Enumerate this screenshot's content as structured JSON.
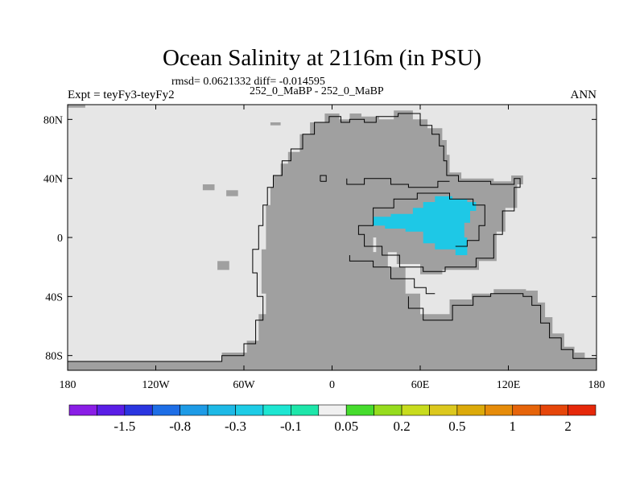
{
  "chart_data": {
    "type": "heatmap",
    "title": "Ocean Salinity at 2116m (in PSU)",
    "rmsd_text": "rmsd= 0.0621332 diff= -0.014595",
    "experiment_text": "252_0_MaBP - 252_0_MaBP",
    "left_header": "Expt = teyFy3-teyFy2",
    "right_header": "ANN",
    "x_range": [
      -180,
      180
    ],
    "y_range": [
      -90,
      90
    ],
    "x_ticks": [
      {
        "value": -180,
        "label": "180"
      },
      {
        "value": -120,
        "label": "120W"
      },
      {
        "value": -60,
        "label": "60W"
      },
      {
        "value": 0,
        "label": "0"
      },
      {
        "value": 60,
        "label": "60E"
      },
      {
        "value": 120,
        "label": "120E"
      },
      {
        "value": 180,
        "label": "180"
      }
    ],
    "y_ticks": [
      {
        "value": 80,
        "label": "80N"
      },
      {
        "value": 40,
        "label": "40N"
      },
      {
        "value": 0,
        "label": "0"
      },
      {
        "value": -40,
        "label": "40S"
      },
      {
        "value": -80,
        "label": "80S"
      }
    ],
    "colorbar": {
      "colors": [
        "#8a1ee6",
        "#5a1ee6",
        "#2a35e0",
        "#1e6ee6",
        "#1e9be6",
        "#1eb9e6",
        "#1ecce6",
        "#1ee6d2",
        "#1ee6aa",
        "#f0f0f0",
        "#46dc2d",
        "#96dc1e",
        "#c8dc1e",
        "#dcc81e",
        "#dcaa0a",
        "#e68c0a",
        "#e6640a",
        "#e6460a",
        "#e6280a"
      ],
      "labels": [
        {
          "text": "-1.5",
          "boundary": 2
        },
        {
          "text": "-0.8",
          "boundary": 4
        },
        {
          "text": "-0.3",
          "boundary": 6
        },
        {
          "text": "-0.1",
          "boundary": 8
        },
        {
          "text": "0.05",
          "boundary": 10
        },
        {
          "text": "0.2",
          "boundary": 12
        },
        {
          "text": "0.5",
          "boundary": 14
        },
        {
          "text": "1",
          "boundary": 16
        },
        {
          "text": "2",
          "boundary": 18
        }
      ]
    },
    "ocean_color": "#e6e6e6",
    "land_color": "#a0a0a0",
    "anomaly_color": "#1ec8e6",
    "land_masses": [
      [
        [
          -180,
          -90
        ],
        [
          -180,
          -84
        ],
        [
          -75,
          -84
        ],
        [
          -75,
          -78
        ],
        [
          -58,
          -78
        ],
        [
          -58,
          -70
        ],
        [
          -50,
          -70
        ],
        [
          -50,
          -52
        ],
        [
          -45,
          -52
        ],
        [
          -45,
          -38
        ],
        [
          -48,
          -38
        ],
        [
          -48,
          -24
        ],
        [
          -48,
          -8
        ],
        [
          -45,
          -8
        ],
        [
          -45,
          8
        ],
        [
          -45,
          22
        ],
        [
          -42,
          22
        ],
        [
          -42,
          34
        ],
        [
          -40,
          34
        ],
        [
          -40,
          42
        ],
        [
          -35,
          42
        ],
        [
          -35,
          50
        ],
        [
          -30,
          50
        ],
        [
          -30,
          58
        ],
        [
          -22,
          58
        ],
        [
          -22,
          70
        ],
        [
          -15,
          70
        ],
        [
          -15,
          78
        ],
        [
          -5,
          78
        ],
        [
          -5,
          84
        ],
        [
          5,
          84
        ],
        [
          5,
          80
        ],
        [
          12,
          80
        ],
        [
          12,
          84
        ],
        [
          20,
          84
        ],
        [
          20,
          82
        ],
        [
          32,
          82
        ],
        [
          32,
          80
        ],
        [
          42,
          80
        ],
        [
          42,
          86
        ],
        [
          55,
          86
        ],
        [
          55,
          80
        ],
        [
          65,
          80
        ],
        [
          65,
          74
        ],
        [
          75,
          74
        ],
        [
          75,
          66
        ],
        [
          78,
          66
        ],
        [
          78,
          56
        ],
        [
          80,
          56
        ],
        [
          80,
          44
        ],
        [
          88,
          44
        ],
        [
          88,
          40
        ],
        [
          110,
          40
        ],
        [
          110,
          38
        ],
        [
          122,
          38
        ],
        [
          122,
          42
        ],
        [
          130,
          42
        ],
        [
          130,
          36
        ],
        [
          126,
          36
        ],
        [
          126,
          20
        ],
        [
          118,
          20
        ],
        [
          118,
          4
        ],
        [
          112,
          4
        ],
        [
          112,
          -16
        ],
        [
          100,
          -16
        ],
        [
          100,
          -22
        ],
        [
          75,
          -22
        ],
        [
          75,
          -25
        ],
        [
          60,
          -25
        ],
        [
          60,
          -18
        ],
        [
          44,
          -18
        ],
        [
          44,
          -10
        ],
        [
          30,
          -10
        ],
        [
          30,
          0
        ],
        [
          28,
          0
        ],
        [
          28,
          -10
        ],
        [
          38,
          -10
        ],
        [
          38,
          -20
        ],
        [
          50,
          -20
        ],
        [
          50,
          -38
        ],
        [
          60,
          -38
        ],
        [
          60,
          -52
        ],
        [
          80,
          -52
        ],
        [
          80,
          -42
        ],
        [
          95,
          -42
        ],
        [
          95,
          -38
        ],
        [
          110,
          -38
        ],
        [
          110,
          -35
        ],
        [
          132,
          -35
        ],
        [
          132,
          -36
        ],
        [
          140,
          -36
        ],
        [
          140,
          -44
        ],
        [
          145,
          -44
        ],
        [
          145,
          -54
        ],
        [
          150,
          -54
        ],
        [
          150,
          -65
        ],
        [
          158,
          -65
        ],
        [
          158,
          -74
        ],
        [
          165,
          -74
        ],
        [
          165,
          -78
        ],
        [
          172,
          -78
        ],
        [
          172,
          -82
        ],
        [
          180,
          -82
        ],
        [
          180,
          -90
        ]
      ],
      [
        [
          -88,
          32
        ],
        [
          -80,
          32
        ],
        [
          -80,
          36
        ],
        [
          -88,
          36
        ]
      ],
      [
        [
          -72,
          28
        ],
        [
          -64,
          28
        ],
        [
          -64,
          32
        ],
        [
          -72,
          32
        ]
      ],
      [
        [
          -78,
          -22
        ],
        [
          -70,
          -22
        ],
        [
          -70,
          -16
        ],
        [
          -78,
          -16
        ]
      ],
      [
        [
          -42,
          76
        ],
        [
          -35,
          76
        ],
        [
          -35,
          78
        ],
        [
          -42,
          78
        ]
      ],
      [
        [
          24,
          -10
        ],
        [
          34,
          -10
        ],
        [
          34,
          -16
        ],
        [
          24,
          -16
        ]
      ],
      [
        [
          -180,
          88
        ],
        [
          -168,
          88
        ],
        [
          -168,
          90
        ],
        [
          -180,
          90
        ]
      ]
    ],
    "coastlines": [
      [
        [
          -180,
          -84
        ],
        [
          -75,
          -84
        ],
        [
          -75,
          -80
        ],
        [
          -60,
          -80
        ],
        [
          -60,
          -72
        ],
        [
          -52,
          -72
        ],
        [
          -52,
          -56
        ],
        [
          -47,
          -56
        ],
        [
          -47,
          -40
        ],
        [
          -51,
          -40
        ],
        [
          -51,
          -24
        ],
        [
          -54,
          -24
        ],
        [
          -54,
          -8
        ],
        [
          -50,
          -8
        ],
        [
          -50,
          8
        ],
        [
          -47,
          8
        ],
        [
          -47,
          22
        ],
        [
          -44,
          22
        ],
        [
          -44,
          34
        ],
        [
          -40,
          34
        ],
        [
          -40,
          42
        ],
        [
          -34,
          42
        ],
        [
          -34,
          52
        ],
        [
          -28,
          52
        ],
        [
          -28,
          60
        ],
        [
          -20,
          60
        ],
        [
          -20,
          70
        ],
        [
          -12,
          70
        ],
        [
          -12,
          78
        ],
        [
          -2,
          78
        ],
        [
          -2,
          82
        ],
        [
          6,
          82
        ],
        [
          6,
          78
        ],
        [
          12,
          78
        ],
        [
          12,
          80
        ],
        [
          22,
          80
        ],
        [
          22,
          78
        ],
        [
          30,
          78
        ],
        [
          30,
          82
        ],
        [
          45,
          82
        ],
        [
          45,
          84
        ],
        [
          60,
          84
        ],
        [
          60,
          76
        ],
        [
          68,
          76
        ],
        [
          68,
          70
        ],
        [
          73,
          70
        ],
        [
          73,
          62
        ],
        [
          76,
          62
        ],
        [
          76,
          52
        ],
        [
          78,
          52
        ],
        [
          78,
          42
        ],
        [
          86,
          42
        ],
        [
          86,
          38
        ],
        [
          108,
          38
        ],
        [
          108,
          36
        ],
        [
          124,
          36
        ],
        [
          124,
          40
        ],
        [
          128,
          40
        ],
        [
          128,
          34
        ],
        [
          124,
          34
        ],
        [
          124,
          18
        ],
        [
          116,
          18
        ],
        [
          116,
          2
        ],
        [
          110,
          2
        ],
        [
          110,
          -14
        ],
        [
          98,
          -14
        ],
        [
          98,
          -20
        ],
        [
          77,
          -20
        ],
        [
          77,
          -23
        ],
        [
          62,
          -23
        ],
        [
          62,
          -20
        ],
        [
          46,
          -20
        ],
        [
          46,
          -12
        ],
        [
          34,
          -12
        ],
        [
          34,
          -6
        ],
        [
          22,
          -6
        ],
        [
          22,
          2
        ],
        [
          18,
          2
        ],
        [
          18,
          8
        ],
        [
          28,
          8
        ],
        [
          28,
          20
        ],
        [
          42,
          20
        ],
        [
          42,
          26
        ],
        [
          58,
          26
        ],
        [
          58,
          30
        ],
        [
          80,
          30
        ],
        [
          80,
          26
        ],
        [
          96,
          26
        ],
        [
          96,
          22
        ],
        [
          104,
          22
        ],
        [
          104,
          8
        ],
        [
          100,
          8
        ],
        [
          100,
          -2
        ],
        [
          92,
          -2
        ],
        [
          92,
          -6
        ],
        [
          84,
          -6
        ]
      ],
      [
        [
          -8,
          38
        ],
        [
          -4,
          38
        ],
        [
          -4,
          42
        ],
        [
          -8,
          42
        ],
        [
          -8,
          38
        ]
      ],
      [
        [
          10,
          40
        ],
        [
          10,
          36
        ],
        [
          22,
          36
        ],
        [
          22,
          40
        ],
        [
          40,
          40
        ],
        [
          40,
          36
        ],
        [
          52,
          36
        ],
        [
          52,
          34
        ],
        [
          72,
          34
        ],
        [
          72,
          38
        ],
        [
          80,
          38
        ]
      ],
      [
        [
          12,
          -12
        ],
        [
          12,
          -16
        ],
        [
          28,
          -16
        ],
        [
          28,
          -20
        ],
        [
          40,
          -20
        ],
        [
          40,
          -28
        ],
        [
          56,
          -28
        ],
        [
          56,
          -34
        ],
        [
          64,
          -34
        ],
        [
          64,
          -38
        ],
        [
          70,
          -38
        ]
      ],
      [
        [
          52,
          -40
        ],
        [
          52,
          -48
        ],
        [
          62,
          -48
        ],
        [
          62,
          -56
        ],
        [
          82,
          -56
        ],
        [
          82,
          -46
        ],
        [
          96,
          -46
        ],
        [
          96,
          -40
        ],
        [
          108,
          -40
        ],
        [
          108,
          -38
        ],
        [
          130,
          -38
        ],
        [
          130,
          -40
        ],
        [
          136,
          -40
        ],
        [
          136,
          -46
        ],
        [
          142,
          -46
        ],
        [
          142,
          -58
        ],
        [
          148,
          -58
        ],
        [
          148,
          -68
        ],
        [
          156,
          -68
        ],
        [
          156,
          -76
        ],
        [
          164,
          -76
        ],
        [
          164,
          -82
        ],
        [
          180,
          -82
        ]
      ]
    ],
    "anomaly_regions": [
      [
        [
          28,
          14
        ],
        [
          40,
          14
        ],
        [
          40,
          16
        ],
        [
          55,
          16
        ],
        [
          55,
          20
        ],
        [
          62,
          20
        ],
        [
          62,
          24
        ],
        [
          70,
          24
        ],
        [
          70,
          28
        ],
        [
          82,
          28
        ],
        [
          82,
          26
        ],
        [
          92,
          26
        ],
        [
          92,
          24
        ],
        [
          98,
          24
        ],
        [
          98,
          18
        ],
        [
          94,
          18
        ],
        [
          94,
          10
        ],
        [
          90,
          10
        ],
        [
          90,
          0
        ],
        [
          92,
          0
        ],
        [
          92,
          -12
        ],
        [
          84,
          -12
        ],
        [
          84,
          -8
        ],
        [
          70,
          -8
        ],
        [
          70,
          -4
        ],
        [
          62,
          -4
        ],
        [
          62,
          4
        ],
        [
          50,
          4
        ],
        [
          50,
          6
        ],
        [
          36,
          6
        ],
        [
          36,
          8
        ],
        [
          28,
          8
        ],
        [
          28,
          14
        ]
      ]
    ]
  }
}
